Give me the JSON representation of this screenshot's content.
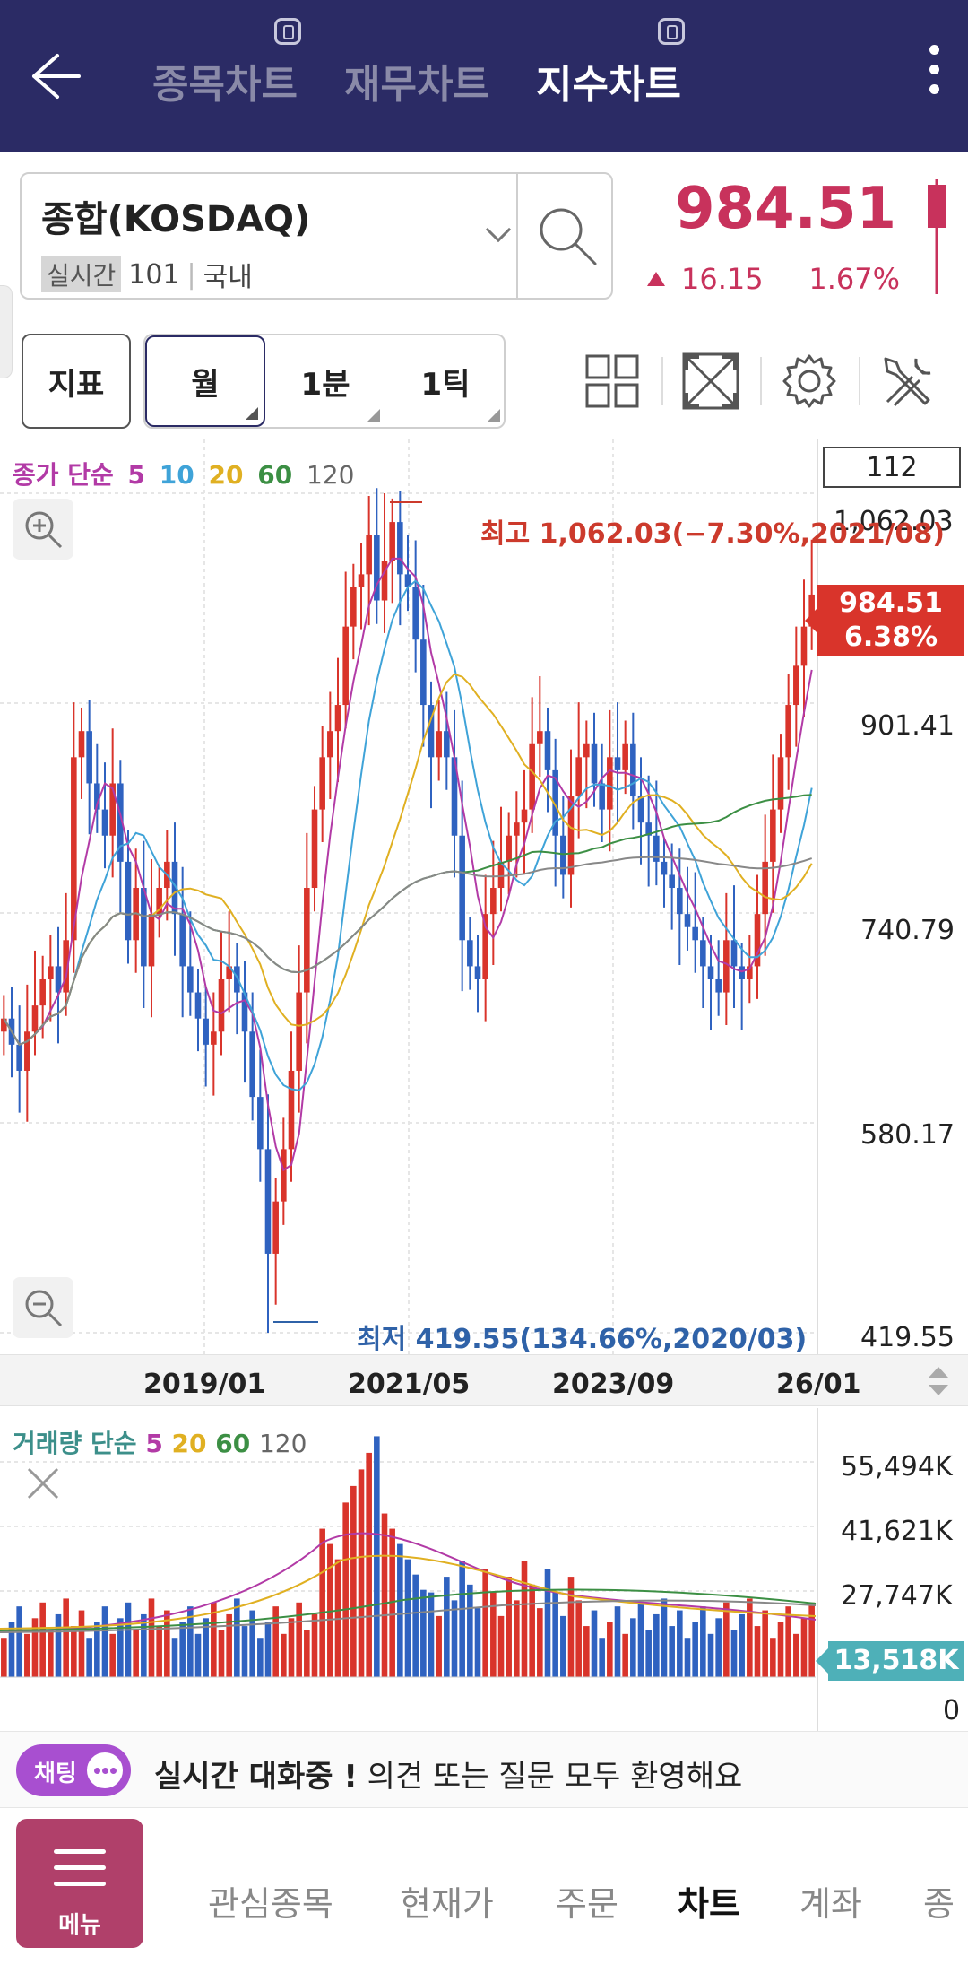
{
  "header": {
    "tabs": [
      {
        "label": "종목차트",
        "badge": true,
        "active": false
      },
      {
        "label": "재무차트",
        "badge": false,
        "active": false
      },
      {
        "label": "지수차트",
        "badge": true,
        "active": true
      }
    ]
  },
  "stock": {
    "name": "종합(KOSDAQ)",
    "realtime_badge": "실시간",
    "code": "101",
    "market": "국내",
    "price": "984.51",
    "change": "16.15",
    "change_rate": "1.67%",
    "direction": "up"
  },
  "toolbar": {
    "indicator_label": "지표",
    "periods": [
      "월",
      "1분",
      "1틱"
    ],
    "selected_period": "월",
    "tools": [
      "grid-layout-icon",
      "expand-icon",
      "settings-gear-icon",
      "tools-icon"
    ]
  },
  "price_chart": {
    "ma_legend": {
      "prefix": "종가 단순",
      "periods": [
        {
          "label": "5",
          "color": "#b23aa6"
        },
        {
          "label": "10",
          "color": "#3fa3d8"
        },
        {
          "label": "20",
          "color": "#e0b022"
        },
        {
          "label": "60",
          "color": "#3c8f44"
        },
        {
          "label": "120",
          "color": "#666666"
        }
      ]
    },
    "candle_count": "112",
    "y_labels": [
      "1,062.03",
      "901.41",
      "740.79",
      "580.17",
      "419.55"
    ],
    "x_labels": [
      "2019/01",
      "2021/05",
      "2023/09",
      "26/01"
    ],
    "current_tag": {
      "price": "984.51",
      "rate": "6.38%"
    },
    "high_annotation": "최고 1,062.03(−7.30%,2021/08)",
    "low_annotation": "최저 419.55(134.66%,2020/03)"
  },
  "volume_chart": {
    "legend": {
      "prefix": "거래량 단순",
      "periods": [
        {
          "label": "5",
          "color": "#b23aa6"
        },
        {
          "label": "20",
          "color": "#e0b022"
        },
        {
          "label": "60",
          "color": "#3c8f44"
        },
        {
          "label": "120",
          "color": "#666666"
        }
      ]
    },
    "y_labels": [
      "55,494K",
      "41,621K",
      "27,747K",
      "0"
    ],
    "current_tag": "13,518K"
  },
  "chat": {
    "pill_label": "채팅",
    "bold_text": "실시간 대화중 !",
    "text": " 의견 또는 질문 모두 환영해요"
  },
  "bottom_nav": {
    "menu_label": "메뉴",
    "items": [
      {
        "label": "관심종목",
        "active": false
      },
      {
        "label": "현재가",
        "active": false
      },
      {
        "label": "주문",
        "active": false
      },
      {
        "label": "차트",
        "active": true
      },
      {
        "label": "계좌",
        "active": false
      },
      {
        "label": "종",
        "active": false
      }
    ]
  },
  "colors": {
    "header_bg": "#2b2b65",
    "up": "#d9342b",
    "down": "#2f62c0",
    "price_text": "#c8325c",
    "menu_bg": "#b0406a",
    "chat_accent": "#a84fd0"
  }
}
